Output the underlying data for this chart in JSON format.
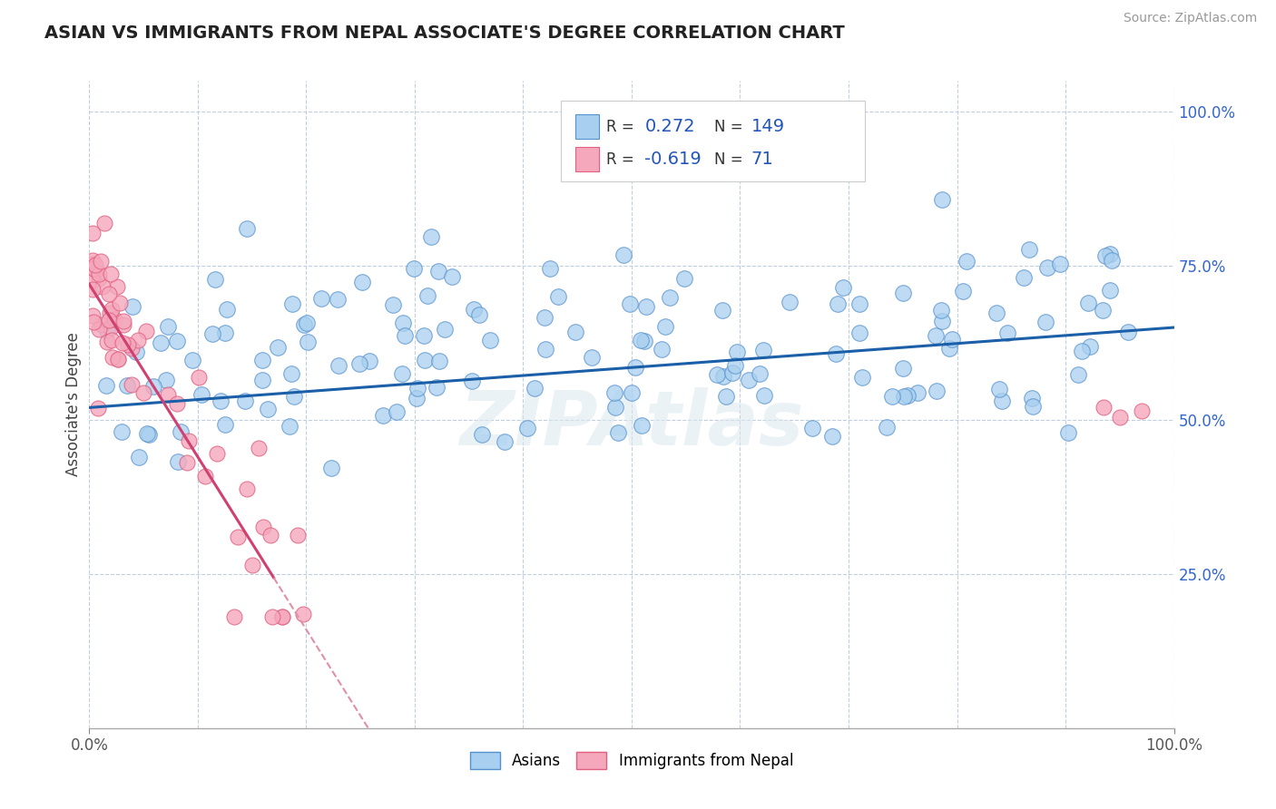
{
  "title": "ASIAN VS IMMIGRANTS FROM NEPAL ASSOCIATE'S DEGREE CORRELATION CHART",
  "source": "Source: ZipAtlas.com",
  "ylabel": "Associate's Degree",
  "xmin": 0.0,
  "xmax": 100.0,
  "ymin": 0.0,
  "ymax": 105.0,
  "yticks_right": [
    25,
    50,
    75,
    100
  ],
  "ytick_right_labels": [
    "25.0%",
    "50.0%",
    "75.0%",
    "100.0%"
  ],
  "r_asian": 0.272,
  "n_asian": 149,
  "r_nepal": -0.619,
  "n_nepal": 71,
  "color_asian_fill": "#a8cff0",
  "color_asian_edge": "#5591cc",
  "color_asian_line": "#1a5fa8",
  "color_nepal_fill": "#f5a8bc",
  "color_nepal_edge": "#e06080",
  "color_nepal_line": "#d04070",
  "color_nepal_line_dashed": "#e090a8",
  "bg_color": "#ffffff",
  "grid_color": "#c0cfe0",
  "watermark": "ZIPAtlas",
  "legend_r_color": "#2255bb",
  "legend_n_color": "#2255bb"
}
